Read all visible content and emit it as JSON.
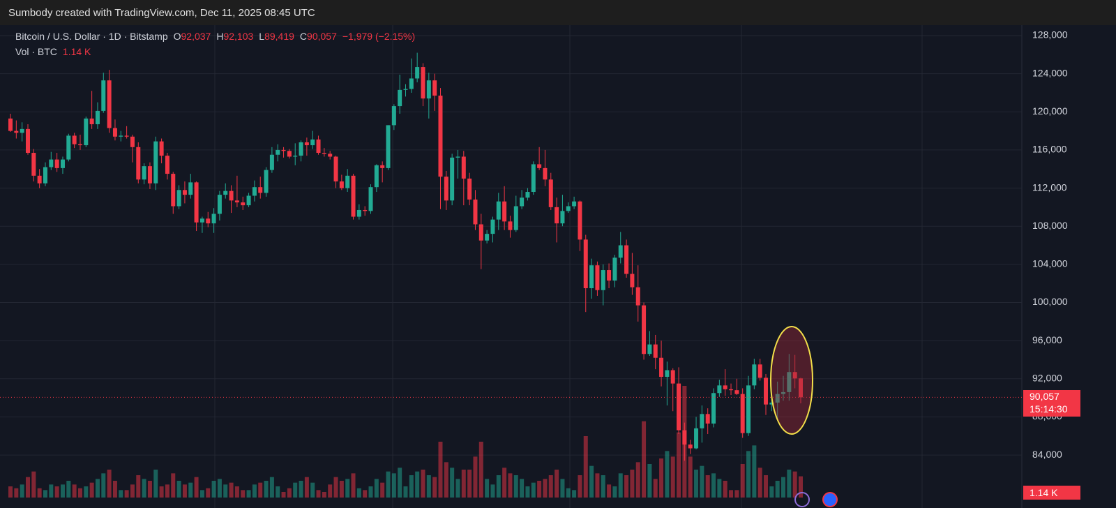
{
  "header": "Sumbody created with TradingView.com, Dec 11, 2025 08:45 UTC",
  "legend": {
    "symbol": "Bitcoin / U.S. Dollar · 1D · Bitstamp",
    "open_label": "O",
    "open": "92,037",
    "high_label": "H",
    "high": "92,103",
    "low_label": "L",
    "low": "89,419",
    "close_label": "C",
    "close": "90,057",
    "change": "−1,979 (−2.15%)",
    "vol_label": "Vol · BTC",
    "vol": "1.14 K"
  },
  "price_tag": "90,057",
  "countdown": "15:14:30",
  "volume_tag": "1.14 K",
  "chart_data": {
    "type": "candlestick",
    "up_color": "#22ab94",
    "down_color": "#f23645",
    "ylim": [
      79540,
      129170
    ],
    "yticks": [
      {
        "value": 84000,
        "label": "84,000"
      },
      {
        "value": 88000,
        "label": "88,000"
      },
      {
        "value": 92000,
        "label": "92,000"
      },
      {
        "value": 96000,
        "label": "96,000"
      },
      {
        "value": 100000,
        "label": "100,000"
      },
      {
        "value": 104000,
        "label": "104,000"
      },
      {
        "value": 108000,
        "label": "108,000"
      },
      {
        "value": 112000,
        "label": "112,000"
      },
      {
        "value": 116000,
        "label": "116,000"
      },
      {
        "value": 120000,
        "label": "120,000"
      },
      {
        "value": 124000,
        "label": "124,000"
      },
      {
        "value": 128000,
        "label": "128,000"
      }
    ],
    "grid": true,
    "open": [
      119300,
      118000,
      117800,
      118200,
      115700,
      113300,
      112500,
      114200,
      115000,
      114100,
      115000,
      117500,
      116600,
      116500,
      119300,
      118700,
      120100,
      123300,
      118300,
      117400,
      117500,
      117400,
      116300,
      112900,
      114300,
      112500,
      116900,
      115400,
      113500,
      110100,
      111800,
      111300,
      112600,
      108400,
      108800,
      108300,
      109300,
      111300,
      111700,
      110700,
      110500,
      110200,
      111200,
      112100,
      111500,
      113900,
      115500,
      116000,
      115900,
      115300,
      115400,
      116800,
      116500,
      117100,
      115700,
      115600,
      115300,
      112700,
      112000,
      113300,
      109000,
      109700,
      109600,
      112100,
      114400,
      114100,
      118600,
      120600,
      122300,
      122400,
      123500,
      124700,
      121400,
      123300,
      121700,
      113200,
      110700,
      115200,
      115300,
      113000,
      110800,
      108200,
      106500,
      107200,
      108700,
      110600,
      108500,
      107600,
      110100,
      111000,
      111600,
      114500,
      114100,
      112900,
      110000,
      108300,
      109600,
      110100,
      110600,
      106600,
      101500,
      103900,
      101300,
      103400,
      102300,
      104700,
      106000,
      103000,
      101600,
      99700,
      94600,
      95600,
      94200,
      92200,
      92900,
      91500,
      86600,
      85100,
      84700,
      86800,
      88300,
      87300,
      90500,
      91300,
      90900,
      90800,
      90400,
      86300,
      91300,
      93500,
      92100,
      89300,
      89500,
      90400,
      90600,
      92700,
      92037
    ],
    "high": [
      119800,
      119100,
      118900,
      118700,
      116100,
      114000,
      114700,
      115800,
      115700,
      115300,
      117700,
      117800,
      117600,
      119500,
      122200,
      121000,
      124100,
      124400,
      119200,
      118000,
      118500,
      117600,
      116800,
      114600,
      114700,
      117400,
      117200,
      115700,
      113700,
      112300,
      112700,
      113500,
      112700,
      109000,
      109500,
      109900,
      111700,
      112500,
      112300,
      113300,
      111100,
      111500,
      112800,
      113200,
      114200,
      116300,
      116600,
      116300,
      116100,
      116700,
      117000,
      117300,
      118000,
      117500,
      116200,
      115900,
      115400,
      113400,
      114000,
      113500,
      110300,
      110100,
      112400,
      114500,
      114800,
      118600,
      120800,
      123900,
      122900,
      125600,
      126200,
      125100,
      124100,
      124000,
      122500,
      113800,
      115600,
      116000,
      115900,
      113600,
      111800,
      109300,
      107600,
      109000,
      111500,
      112200,
      109100,
      111200,
      111800,
      112000,
      114800,
      116300,
      116000,
      113600,
      111000,
      111300,
      110500,
      111100,
      110700,
      107100,
      104600,
      104300,
      104000,
      104100,
      105000,
      107400,
      106600,
      105200,
      103900,
      100000,
      97000,
      96600,
      96000,
      93800,
      93100,
      93200,
      87400,
      85600,
      88000,
      89200,
      88900,
      91000,
      91900,
      93000,
      91500,
      92000,
      91000,
      92300,
      94100,
      94100,
      92500,
      90300,
      91700,
      92300,
      94600,
      94500,
      92103
    ],
    "low": [
      117900,
      117200,
      116900,
      115500,
      112700,
      112000,
      112200,
      113900,
      113700,
      113500,
      114800,
      116200,
      116000,
      116300,
      118200,
      118200,
      119900,
      117800,
      117000,
      116900,
      117200,
      114700,
      112500,
      112400,
      111900,
      111800,
      114600,
      112900,
      109300,
      109800,
      110400,
      110900,
      107500,
      107300,
      107900,
      107300,
      108600,
      110900,
      109400,
      110000,
      109700,
      110000,
      110600,
      110900,
      111100,
      113600,
      114800,
      115200,
      115100,
      114400,
      114800,
      115400,
      116100,
      115500,
      115300,
      115000,
      112000,
      111800,
      111600,
      108700,
      108700,
      109100,
      109300,
      111600,
      112600,
      113900,
      118100,
      119800,
      121600,
      122000,
      123100,
      120600,
      119300,
      120100,
      109800,
      109700,
      110200,
      113000,
      110200,
      110200,
      107600,
      103500,
      106200,
      106300,
      107600,
      107600,
      106800,
      107400,
      109800,
      110700,
      111300,
      113900,
      112200,
      109700,
      106300,
      108000,
      109400,
      109800,
      105400,
      99000,
      100400,
      100700,
      99700,
      101500,
      101600,
      104100,
      102600,
      100800,
      98000,
      94000,
      94400,
      93000,
      91200,
      89200,
      88600,
      86200,
      83400,
      84100,
      84600,
      85300,
      86200,
      86900,
      90100,
      90200,
      90300,
      90300,
      85800,
      86000,
      90900,
      91800,
      88200,
      88600,
      87700,
      89700,
      89700,
      91000,
      89419
    ],
    "close": [
      118000,
      117800,
      118200,
      115700,
      113300,
      112500,
      114200,
      115000,
      114100,
      115000,
      117500,
      116600,
      116500,
      119300,
      118700,
      120100,
      123300,
      118300,
      117400,
      117500,
      117400,
      116300,
      112900,
      114300,
      112500,
      116900,
      115400,
      113500,
      110100,
      111800,
      111300,
      112600,
      108400,
      108800,
      108300,
      109300,
      111300,
      111700,
      110700,
      110500,
      110200,
      111200,
      112100,
      111500,
      113900,
      115500,
      116000,
      115900,
      115300,
      115400,
      116800,
      116500,
      117100,
      115700,
      115600,
      115300,
      112700,
      112000,
      113300,
      109000,
      109700,
      109600,
      112100,
      114400,
      114100,
      118600,
      120600,
      122300,
      122400,
      123500,
      124700,
      121400,
      123300,
      121700,
      113200,
      110700,
      115200,
      115300,
      113000,
      110800,
      108200,
      106500,
      107200,
      108700,
      110600,
      108500,
      107600,
      110100,
      111000,
      111600,
      114500,
      114100,
      112900,
      110000,
      108300,
      109600,
      110100,
      110600,
      106600,
      101500,
      103900,
      101300,
      103400,
      102300,
      104700,
      106000,
      103000,
      101600,
      99700,
      94600,
      95600,
      94200,
      92200,
      92900,
      91500,
      86600,
      85100,
      84700,
      86800,
      88300,
      87300,
      90500,
      91300,
      90900,
      90800,
      90400,
      86300,
      91300,
      93500,
      92100,
      89300,
      89500,
      90400,
      90600,
      92700,
      92036,
      90057
    ],
    "volume": [
      600,
      500,
      700,
      1100,
      1400,
      500,
      400,
      700,
      600,
      700,
      900,
      700,
      500,
      600,
      800,
      1000,
      1300,
      1500,
      900,
      400,
      400,
      700,
      1200,
      1000,
      900,
      1500,
      600,
      700,
      1300,
      900,
      700,
      800,
      1100,
      400,
      500,
      900,
      1000,
      700,
      800,
      600,
      400,
      400,
      700,
      800,
      900,
      1100,
      600,
      300,
      500,
      800,
      900,
      1100,
      800,
      400,
      300,
      700,
      1100,
      900,
      1000,
      1300,
      500,
      400,
      600,
      1000,
      800,
      1400,
      1300,
      1600,
      600,
      1200,
      1400,
      1500,
      1200,
      1100,
      3000,
      1900,
      1600,
      1000,
      1500,
      1500,
      2200,
      3000,
      1000,
      700,
      1200,
      1600,
      1300,
      1200,
      1000,
      600,
      800,
      900,
      1000,
      1200,
      1500,
      1000,
      500,
      400,
      1200,
      3300,
      1700,
      1300,
      1200,
      700,
      600,
      1300,
      1200,
      1500,
      1900,
      4100,
      1800,
      1000,
      2100,
      2500,
      2200,
      3500,
      6000,
      2200,
      1500,
      1700,
      1200,
      1300,
      1000,
      900,
      400,
      400,
      1800,
      2500,
      2800,
      1600,
      1200,
      600,
      900,
      1100,
      1500,
      1400,
      1140
    ]
  }
}
